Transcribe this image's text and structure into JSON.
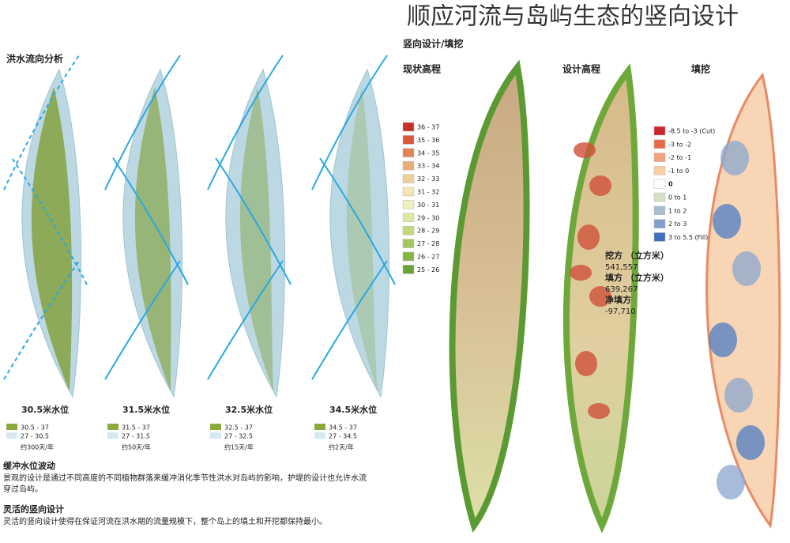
{
  "header": {
    "title": "顺应河流与岛屿生态的竖向设计",
    "subtitle": "竖向设计/填挖"
  },
  "flood_analysis": {
    "title": "洪水流向分析",
    "panels": [
      {
        "level": "30.5米水位",
        "legend": [
          {
            "label": "30.5 - 37",
            "color": "#8aab3c"
          },
          {
            "label": "27 - 30.5",
            "color": "#d4e9f2"
          }
        ],
        "frequency": "约300天/年"
      },
      {
        "level": "31.5米水位",
        "legend": [
          {
            "label": "31.5 - 37",
            "color": "#8aab3c"
          },
          {
            "label": "27 - 31.5",
            "color": "#d4e9f2"
          }
        ],
        "frequency": "约50天/年"
      },
      {
        "level": "32.5米水位",
        "legend": [
          {
            "label": "32.5 - 37",
            "color": "#8aab3c"
          },
          {
            "label": "27 - 32.5",
            "color": "#d4e9f2"
          }
        ],
        "frequency": "约15天/年"
      },
      {
        "level": "34.5米水位",
        "legend": [
          {
            "label": "34.5 - 37",
            "color": "#8aab3c"
          },
          {
            "label": "27 - 34.5",
            "color": "#d4e9f2"
          }
        ],
        "frequency": "约2天/年"
      }
    ]
  },
  "notes": [
    {
      "heading": "缓冲水位波动",
      "text": [
        "景观的设计是通过不同高度的不同植物群落来缓冲消化季节性洪水对岛屿的影响，护堤的设计也允许水流",
        "穿过岛屿。"
      ]
    },
    {
      "heading": "灵活的竖向设计",
      "text": [
        "灵活的竖向设计使得在保证河流在洪水期的流量规模下，整个岛上的填土和开挖都保持最小。"
      ]
    }
  ],
  "maps": {
    "existing": {
      "title": "现状高程",
      "legend": [
        {
          "label": "36 - 37",
          "color": "#c8302a"
        },
        {
          "label": "35 - 36",
          "color": "#d9583a"
        },
        {
          "label": "34 - 35",
          "color": "#e08453"
        },
        {
          "label": "33 - 34",
          "color": "#e8ad78"
        },
        {
          "label": "32 - 33",
          "color": "#efd09a"
        },
        {
          "label": "31 - 32",
          "color": "#f2e5b1"
        },
        {
          "label": "30 - 31",
          "color": "#eef0c0"
        },
        {
          "label": "29 - 30",
          "color": "#dfe6a0"
        },
        {
          "label": "28 - 29",
          "color": "#c4d97a"
        },
        {
          "label": "27 - 28",
          "color": "#a3c75a"
        },
        {
          "label": "26 - 27",
          "color": "#86b545"
        },
        {
          "label": "25 - 26",
          "color": "#6aa33a"
        }
      ]
    },
    "design": {
      "title": "设计高程"
    },
    "cut_fill": {
      "title": "填挖",
      "legend": [
        {
          "label": "-8.5 to -3 (Cut)",
          "color": "#c8282a"
        },
        {
          "label": "-3 to -2",
          "color": "#e8694a"
        },
        {
          "label": "-2 to -1",
          "color": "#f4a27a"
        },
        {
          "label": "-1 to 0",
          "color": "#f8cfa5"
        },
        {
          "label": "0",
          "color": "#ffffff"
        },
        {
          "label": "0 to 1",
          "color": "#d7e0c6"
        },
        {
          "label": "1 to 2",
          "color": "#a9bfcf"
        },
        {
          "label": "2 to 3",
          "color": "#7f9fcf"
        },
        {
          "label": "3 to 5.5 (Fill)",
          "color": "#3f6fbf"
        }
      ]
    }
  },
  "earthwork": [
    {
      "label": "挖方 （立方米）",
      "value": "541,557"
    },
    {
      "label": "填方 （立方米）",
      "value": "639,267"
    },
    {
      "label": "净填方",
      "value": "-97,710"
    }
  ]
}
